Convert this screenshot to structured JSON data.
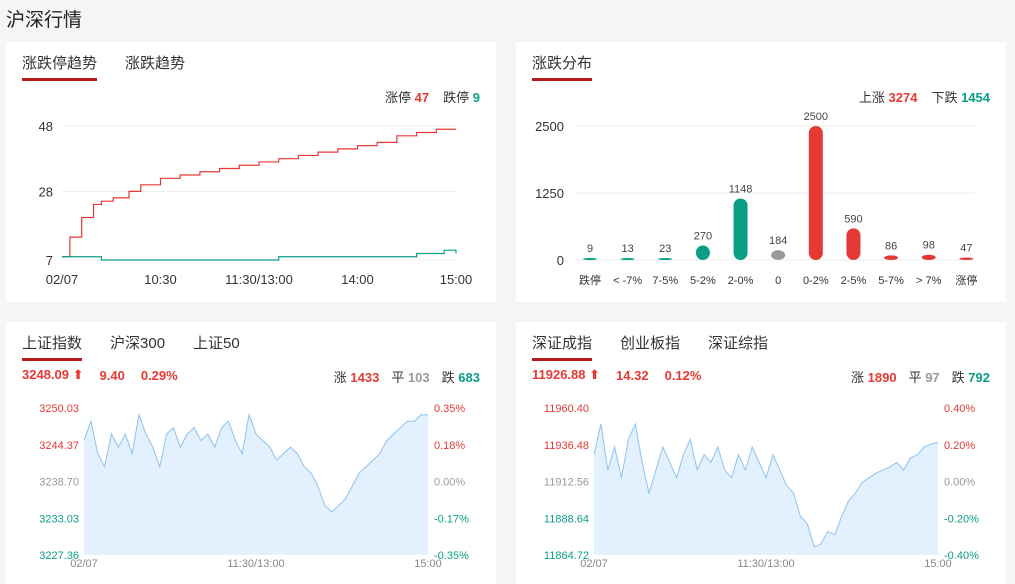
{
  "page": {
    "title": "沪深行情"
  },
  "limit_trend": {
    "tabs": [
      "涨跌停趋势",
      "涨跌趋势"
    ],
    "limit_up_label": "涨停",
    "limit_up_value": "47",
    "limit_down_label": "跌停",
    "limit_down_value": "9",
    "chart_data": {
      "type": "line",
      "x_ticks": [
        "02/07",
        "10:30",
        "11:30/13:00",
        "14:00",
        "15:00"
      ],
      "y_ticks": [
        "48",
        "28",
        "7"
      ],
      "ylim": [
        7,
        48
      ],
      "series": [
        {
          "color": "#e53935",
          "x": [
            0,
            0.02,
            0.05,
            0.08,
            0.1,
            0.13,
            0.17,
            0.2,
            0.25,
            0.3,
            0.35,
            0.4,
            0.45,
            0.5,
            0.55,
            0.6,
            0.65,
            0.7,
            0.75,
            0.8,
            0.85,
            0.9,
            0.95,
            1.0
          ],
          "y": [
            8,
            14,
            20,
            24,
            25,
            26,
            28,
            30,
            32,
            33,
            34,
            35,
            36,
            37,
            38,
            39,
            40,
            41,
            42,
            43,
            45,
            46,
            47,
            47
          ]
        },
        {
          "color": "#0a9e85",
          "x": [
            0,
            0.1,
            0.3,
            0.5,
            0.55,
            0.7,
            0.85,
            0.9,
            0.95,
            0.97,
            1.0
          ],
          "y": [
            8,
            7,
            7,
            7,
            8,
            8,
            8,
            9,
            9,
            10,
            9
          ]
        }
      ]
    }
  },
  "distribution": {
    "tabs": [
      "涨跌分布"
    ],
    "up_label": "上涨",
    "up_value": "3274",
    "down_label": "下跌",
    "down_value": "1454",
    "chart_data": {
      "type": "bar",
      "y_ticks": [
        "2500",
        "1250",
        "0"
      ],
      "ylim": [
        0,
        2500
      ],
      "categories": [
        "跌停",
        "< -7%",
        "7-5%",
        "5-2%",
        "2-0%",
        "0",
        "0-2%",
        "2-5%",
        "5-7%",
        "> 7%",
        "涨停"
      ],
      "values": [
        9,
        13,
        23,
        270,
        1148,
        184,
        2500,
        590,
        86,
        98,
        47
      ],
      "value_labels": [
        "9",
        "13",
        "23",
        "270",
        "1148",
        "184",
        "2500",
        "590",
        "86",
        "98",
        "47"
      ],
      "colors": [
        "#0a9e85",
        "#0a9e85",
        "#0a9e85",
        "#0a9e85",
        "#0a9e85",
        "#999999",
        "#e53935",
        "#e53935",
        "#e53935",
        "#e53935",
        "#e53935"
      ]
    }
  },
  "sh_index": {
    "tabs": [
      "上证指数",
      "沪深300",
      "上证50"
    ],
    "price": "3248.09",
    "arrow": "⬆",
    "change": "9.40",
    "pct": "0.29%",
    "up_label": "涨",
    "up_value": "1433",
    "flat_label": "平",
    "flat_value": "103",
    "down_label": "跌",
    "down_value": "683",
    "chart_data": {
      "type": "area",
      "x_ticks": [
        "02/07",
        "11:30/13:00",
        "15:00"
      ],
      "y_left": [
        "3250.03",
        "3244.37",
        "3238.70",
        "3233.03",
        "3227.36"
      ],
      "y_right": [
        "0.35%",
        "0.18%",
        "0.00%",
        "-0.17%",
        "-0.35%"
      ],
      "ylim": [
        3227.36,
        3250.03
      ],
      "x": [
        0,
        0.02,
        0.04,
        0.06,
        0.08,
        0.1,
        0.12,
        0.14,
        0.16,
        0.18,
        0.2,
        0.22,
        0.24,
        0.26,
        0.28,
        0.3,
        0.32,
        0.34,
        0.36,
        0.38,
        0.4,
        0.42,
        0.44,
        0.46,
        0.48,
        0.5,
        0.52,
        0.54,
        0.56,
        0.58,
        0.6,
        0.62,
        0.64,
        0.66,
        0.68,
        0.7,
        0.72,
        0.74,
        0.76,
        0.78,
        0.8,
        0.82,
        0.84,
        0.86,
        0.88,
        0.9,
        0.92,
        0.94,
        0.96,
        0.98,
        1.0
      ],
      "y": [
        3245,
        3248,
        3243,
        3241,
        3246,
        3244,
        3246,
        3243,
        3249,
        3246,
        3244,
        3241,
        3246,
        3247,
        3244,
        3246,
        3247,
        3245,
        3246,
        3244,
        3247,
        3248,
        3245,
        3243,
        3249,
        3246,
        3245,
        3244,
        3242,
        3243,
        3244,
        3243,
        3241,
        3240,
        3238,
        3235,
        3234,
        3235,
        3236,
        3238,
        3240,
        3241,
        3242,
        3243,
        3245,
        3246,
        3247,
        3248,
        3248,
        3249,
        3249
      ]
    }
  },
  "sz_index": {
    "tabs": [
      "深证成指",
      "创业板指",
      "深证综指"
    ],
    "price": "11926.88",
    "arrow": "⬆",
    "change": "14.32",
    "pct": "0.12%",
    "up_label": "涨",
    "up_value": "1890",
    "flat_label": "平",
    "flat_value": "97",
    "down_label": "跌",
    "down_value": "792",
    "chart_data": {
      "type": "area",
      "x_ticks": [
        "02/07",
        "11:30/13:00",
        "15:00"
      ],
      "y_left": [
        "11960.40",
        "11936.48",
        "11912.56",
        "11888.64",
        "11864.72"
      ],
      "y_right": [
        "0.40%",
        "0.20%",
        "0.00%",
        "-0.20%",
        "-0.40%"
      ],
      "ylim": [
        11864.72,
        11960.4
      ],
      "x": [
        0,
        0.02,
        0.04,
        0.06,
        0.08,
        0.1,
        0.12,
        0.14,
        0.16,
        0.18,
        0.2,
        0.22,
        0.24,
        0.26,
        0.28,
        0.3,
        0.32,
        0.34,
        0.36,
        0.38,
        0.4,
        0.42,
        0.44,
        0.46,
        0.48,
        0.5,
        0.52,
        0.54,
        0.56,
        0.58,
        0.6,
        0.62,
        0.64,
        0.66,
        0.68,
        0.7,
        0.72,
        0.74,
        0.76,
        0.78,
        0.8,
        0.82,
        0.84,
        0.86,
        0.88,
        0.9,
        0.92,
        0.94,
        0.96,
        0.98,
        1.0
      ],
      "y": [
        11930,
        11950,
        11920,
        11935,
        11915,
        11940,
        11950,
        11925,
        11905,
        11920,
        11935,
        11925,
        11915,
        11930,
        11940,
        11920,
        11930,
        11925,
        11935,
        11920,
        11915,
        11930,
        11920,
        11935,
        11925,
        11915,
        11930,
        11920,
        11910,
        11905,
        11890,
        11885,
        11870,
        11872,
        11880,
        11878,
        11890,
        11900,
        11905,
        11912,
        11915,
        11918,
        11920,
        11922,
        11925,
        11920,
        11928,
        11930,
        11935,
        11937,
        11938
      ]
    }
  }
}
